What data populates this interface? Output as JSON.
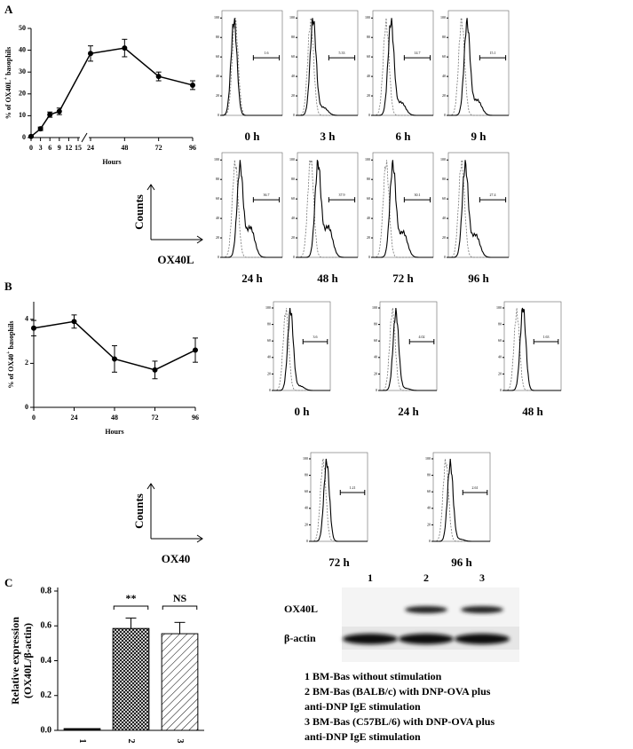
{
  "panel_labels": [
    "A",
    "B",
    "C"
  ],
  "chart_data": [
    {
      "type": "line",
      "y_label": [
        "% of OX40L",
        "+",
        " basophils"
      ],
      "x_label": "Hours",
      "x": [
        0,
        3,
        6,
        9,
        24,
        48,
        72,
        96
      ],
      "values": [
        0.5,
        4,
        10.5,
        12,
        38.5,
        41,
        28,
        24
      ],
      "errors": [
        0.3,
        0.8,
        1.2,
        1.5,
        3.5,
        4,
        2,
        2
      ],
      "color": "#000000",
      "xlim": [
        0,
        96
      ],
      "x_break": [
        15,
        24
      ],
      "xticks": [
        0,
        3,
        6,
        9,
        12,
        15,
        24,
        48,
        72,
        96
      ],
      "ylim": [
        0,
        50
      ],
      "yticks": [
        0,
        10,
        20,
        30,
        40,
        50
      ]
    },
    {
      "type": "line",
      "y_label": [
        "% of OX40",
        "+",
        " basophils"
      ],
      "x_label": "Hours",
      "x": [
        0,
        24,
        48,
        72,
        96
      ],
      "values": [
        3.6,
        3.9,
        2.2,
        1.7,
        2.6
      ],
      "errors": [
        0.35,
        0.3,
        0.6,
        0.4,
        0.55
      ],
      "color": "#000000",
      "xlim": [
        0,
        96
      ],
      "xticks": [
        0,
        24,
        48,
        72,
        96
      ],
      "ylim": [
        0,
        4.8
      ],
      "yticks": [
        0,
        2,
        4
      ]
    },
    {
      "type": "bar",
      "y_label": [
        "Relative expression",
        "(OX40L/β-actin)"
      ],
      "categories": [
        "1",
        "2",
        "3"
      ],
      "values": [
        0.01,
        0.585,
        0.555
      ],
      "errors": [
        0,
        0.06,
        0.065
      ],
      "fills": [
        "solid",
        "crosshatch",
        "diagonal"
      ],
      "color": "#000000",
      "ylim": [
        0,
        0.8
      ],
      "yticks": [
        {
          "value": 0,
          "label": "0.0"
        },
        0.2,
        0.4,
        0.6,
        0.8
      ],
      "annotations": [
        "**",
        "NS"
      ]
    }
  ],
  "flow_cytometry": [
    {
      "marker": "OX40L",
      "counts_label": "Counts",
      "yticks": [
        0,
        20,
        40,
        60,
        80,
        100
      ],
      "panels": [
        {
          "time": "0 h",
          "gate": 1.6
        },
        {
          "time": "3 h",
          "gate": 5.33
        },
        {
          "time": "6 h",
          "gate": 14.7
        },
        {
          "time": "9 h",
          "gate": 15.1
        },
        {
          "time": "24 h",
          "gate": 36.7
        },
        {
          "time": "48 h",
          "gate": 37.9
        },
        {
          "time": "72 h",
          "gate": 30.1
        },
        {
          "time": "96 h",
          "gate": 27.4
        }
      ]
    },
    {
      "marker": "OX40",
      "counts_label": "Counts",
      "yticks": [
        0,
        20,
        40,
        60,
        80,
        100
      ],
      "panels": [
        {
          "time": "0 h",
          "gate": 3.6
        },
        {
          "time": "24 h",
          "gate": 4.02
        },
        {
          "time": "48 h",
          "gate": 1.63
        },
        {
          "time": "72 h",
          "gate": 1.21
        },
        {
          "time": "96 h",
          "gate": 2.61
        }
      ]
    }
  ],
  "western_blot": {
    "lanes": [
      "1",
      "2",
      "3"
    ],
    "rows": [
      "OX40L",
      "β-actin"
    ],
    "legend": [
      "1  BM-Bas without stimulation",
      "2  BM-Bas (BALB/c) with  DNP-OVA plus",
      "anti-DNP IgE stimulation",
      "3  BM-Bas (C57BL/6) with  DNP-OVA plus",
      "anti-DNP IgE stimulation"
    ]
  }
}
